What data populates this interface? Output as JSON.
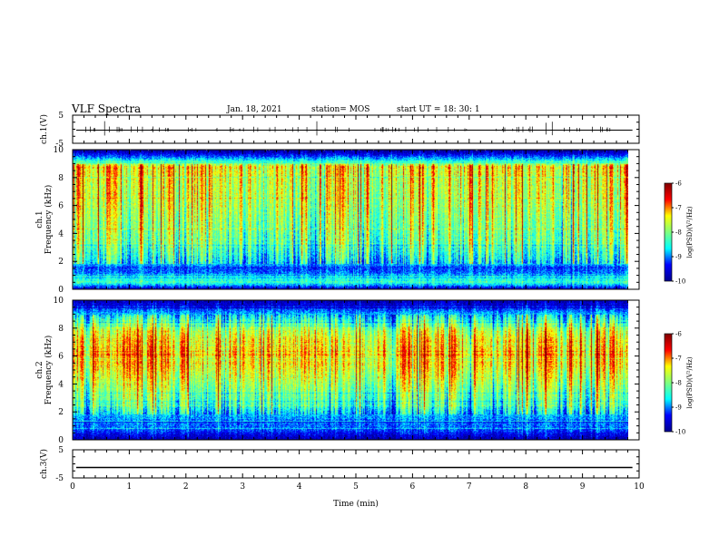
{
  "header": {
    "title": "VLF Spectra",
    "date": "Jan. 18, 2021",
    "station": "station= MOS",
    "start_time": "start  UT =   18: 30: 1"
  },
  "colors": {
    "jet": [
      "#00008f",
      "#0000ff",
      "#00ffff",
      "#7fff7f",
      "#ffff00",
      "#ff0000",
      "#800000"
    ]
  },
  "chart_data": [
    {
      "type": "line",
      "panel": "ch1-waveform",
      "ylabel": "ch.1(V)",
      "ylim": [
        -5,
        5
      ],
      "y_ticks": [
        "5",
        "-5"
      ],
      "x_range": [
        0,
        10
      ],
      "series": [
        {
          "values_summary": "flat trace near 0 V with intermittent spikes"
        }
      ]
    },
    {
      "type": "heatmap",
      "panel": "ch1-spectrogram",
      "ylabel": "ch.1\nFrequency (kHz)",
      "ylim": [
        0,
        10
      ],
      "y_ticks": [
        "0",
        "2",
        "4",
        "6",
        "8",
        "10"
      ],
      "x_range": [
        0,
        9.85
      ],
      "colorbar": {
        "label": "log(PSD)(V²/Hz)",
        "range": [
          -10,
          -6
        ],
        "ticks": [
          "-6",
          "-7",
          "-8",
          "-9",
          "-10"
        ]
      },
      "profile": [
        {
          "f_khz": 0.0,
          "level": -9.6
        },
        {
          "f_khz": 0.5,
          "level": -8.3
        },
        {
          "f_khz": 1.0,
          "level": -9.0
        },
        {
          "f_khz": 1.5,
          "level": -9.2
        },
        {
          "f_khz": 2.0,
          "level": -8.6
        },
        {
          "f_khz": 3.0,
          "level": -8.2
        },
        {
          "f_khz": 4.0,
          "level": -8.0
        },
        {
          "f_khz": 6.0,
          "level": -7.7
        },
        {
          "f_khz": 8.0,
          "level": -7.5
        },
        {
          "f_khz": 8.8,
          "level": -7.3
        },
        {
          "f_khz": 9.3,
          "level": -8.7
        },
        {
          "f_khz": 10.0,
          "level": -10.0
        }
      ]
    },
    {
      "type": "heatmap",
      "panel": "ch2-spectrogram",
      "ylabel": "ch.2\nFrequency (kHz)",
      "ylim": [
        0,
        10
      ],
      "y_ticks": [
        "0",
        "2",
        "4",
        "6",
        "8",
        "10"
      ],
      "x_range": [
        0,
        9.85
      ],
      "colorbar": {
        "label": "log(PSD)(V²/Hz)",
        "range": [
          -10,
          -6
        ],
        "ticks": [
          "-6",
          "-7",
          "-8",
          "-9",
          "-10"
        ]
      },
      "profile": [
        {
          "f_khz": 0.0,
          "level": -9.8
        },
        {
          "f_khz": 0.8,
          "level": -9.1
        },
        {
          "f_khz": 1.5,
          "level": -9.0
        },
        {
          "f_khz": 2.5,
          "level": -8.3
        },
        {
          "f_khz": 4.0,
          "level": -7.8
        },
        {
          "f_khz": 5.5,
          "level": -7.3
        },
        {
          "f_khz": 7.0,
          "level": -7.3
        },
        {
          "f_khz": 8.0,
          "level": -7.8
        },
        {
          "f_khz": 9.0,
          "level": -8.8
        },
        {
          "f_khz": 10.0,
          "level": -9.8
        }
      ]
    },
    {
      "type": "line",
      "panel": "ch3-waveform",
      "ylabel": "ch.3(V)",
      "ylim": [
        -5,
        5
      ],
      "y_ticks": [
        "5",
        "-5"
      ],
      "x_range": [
        0,
        10
      ],
      "series": [
        {
          "values_summary": "flat trace near 0 V"
        }
      ],
      "xlabel": "Time (min)",
      "x_ticks": [
        "0",
        "1",
        "2",
        "3",
        "4",
        "5",
        "6",
        "7",
        "8",
        "9",
        "10"
      ]
    }
  ]
}
